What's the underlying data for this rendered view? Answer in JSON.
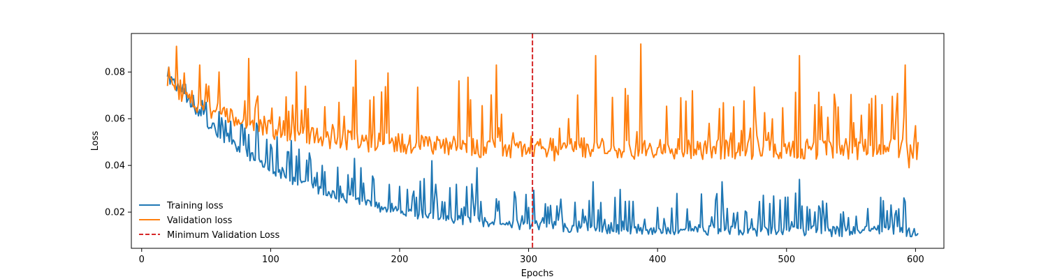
{
  "chart_data": {
    "type": "line",
    "title": "",
    "xlabel": "Epochs",
    "ylabel": "Loss",
    "xlim": [
      -8,
      622
    ],
    "ylim": [
      0.0045,
      0.0965
    ],
    "xticks": [
      0,
      100,
      200,
      300,
      400,
      500,
      600
    ],
    "yticks": [
      0.02,
      0.04,
      0.06,
      0.08
    ],
    "ytick_labels": [
      "0.02",
      "0.04",
      "0.06",
      "0.08"
    ],
    "legend_position": "lower-left",
    "series": [
      {
        "name": "Training loss",
        "color": "#1f77b4",
        "style": "solid",
        "x_start": 20,
        "x_end": 602,
        "trend": {
          "a": 0.0115,
          "b": 0.066,
          "tau": 90,
          "noise": 0.0022,
          "spike_prob": 0.34,
          "spike_max": 0.0155
        },
        "anchors": [
          [
            20,
            0.078
          ],
          [
            25,
            0.077
          ],
          [
            30,
            0.074
          ],
          [
            40,
            0.07
          ],
          [
            50,
            0.067
          ],
          [
            60,
            0.063
          ],
          [
            80,
            0.056
          ],
          [
            100,
            0.049
          ],
          [
            120,
            0.044
          ],
          [
            140,
            0.04
          ],
          [
            160,
            0.036
          ],
          [
            165,
            0.043
          ],
          [
            170,
            0.039
          ],
          [
            180,
            0.034
          ],
          [
            200,
            0.031
          ],
          [
            225,
            0.042
          ],
          [
            260,
            0.039
          ],
          [
            300,
            0.022
          ],
          [
            350,
            0.033
          ],
          [
            400,
            0.022
          ],
          [
            450,
            0.033
          ],
          [
            510,
            0.034
          ],
          [
            530,
            0.012
          ],
          [
            600,
            0.01
          ]
        ]
      },
      {
        "name": "Validation loss",
        "color": "#ff7f0e",
        "style": "solid",
        "x_start": 20,
        "x_end": 602,
        "trend": {
          "a": 0.047,
          "b": 0.028,
          "tau": 70,
          "noise": 0.0045,
          "spike_prob": 0.23,
          "spike_max": 0.028
        },
        "anchors": [
          [
            20,
            0.074
          ],
          [
            21,
            0.082
          ],
          [
            27,
            0.091
          ],
          [
            45,
            0.083
          ],
          [
            60,
            0.08
          ],
          [
            120,
            0.08
          ],
          [
            166,
            0.085
          ],
          [
            205,
            0.045
          ],
          [
            275,
            0.083
          ],
          [
            320,
            0.042
          ],
          [
            352,
            0.087
          ],
          [
            387,
            0.092
          ],
          [
            440,
            0.058
          ],
          [
            510,
            0.087
          ],
          [
            592,
            0.083
          ],
          [
            595,
            0.039
          ],
          [
            600,
            0.057
          ],
          [
            602,
            0.05
          ]
        ]
      }
    ],
    "vlines": [
      {
        "name": "Minimum Validation Loss",
        "x": 303,
        "color": "#d62728",
        "style": "dashed"
      }
    ]
  }
}
